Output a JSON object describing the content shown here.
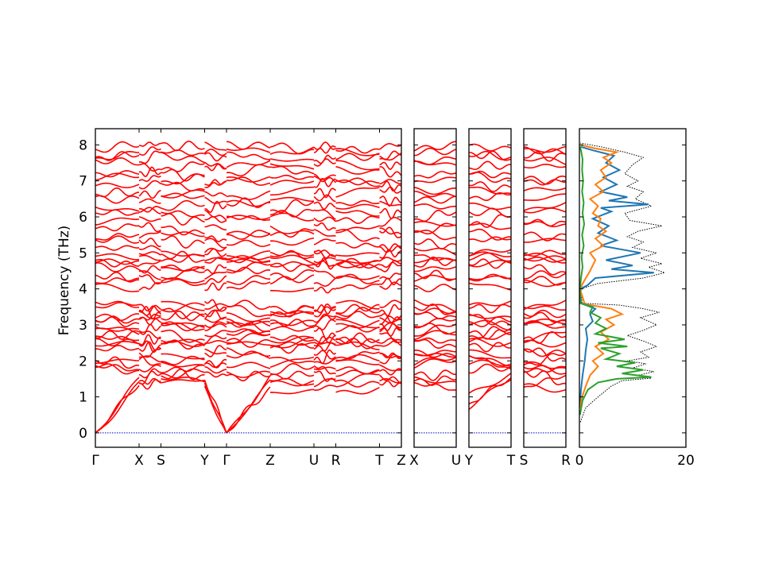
{
  "chart_data": {
    "type": "line",
    "ylabel": "Frequency (THz)",
    "ylim": [
      -0.4,
      8.45
    ],
    "yticks": [
      0,
      1,
      2,
      3,
      4,
      5,
      6,
      7,
      8
    ],
    "panels": [
      {
        "path_labels": [
          "Γ",
          "X",
          "S",
          "Y",
          "Γ",
          "Z",
          "U",
          "R",
          "T",
          "Z"
        ],
        "path_positions": [
          0,
          1,
          1.5,
          2.5,
          3,
          4,
          5,
          5.5,
          6.5,
          7
        ]
      },
      {
        "path_labels": [
          "X",
          "U"
        ],
        "path_positions": [
          0,
          1
        ]
      },
      {
        "path_labels": [
          "Y",
          "T"
        ],
        "path_positions": [
          0,
          1
        ]
      },
      {
        "path_labels": [
          "S",
          "R"
        ],
        "path_positions": [
          0,
          1
        ]
      }
    ],
    "dos_panel": {
      "xlim": [
        0,
        20
      ],
      "xticks": [
        0,
        20
      ],
      "series": [
        {
          "color": "#000000",
          "style": "dotted",
          "points": [
            [
              0.2,
              0.3
            ],
            [
              1.2,
              0.7
            ],
            [
              3.5,
              1.0
            ],
            [
              6.0,
              1.3
            ],
            [
              8.0,
              1.45
            ],
            [
              13.5,
              1.52
            ],
            [
              11.0,
              1.6
            ],
            [
              14.0,
              1.7
            ],
            [
              10.0,
              1.8
            ],
            [
              12.5,
              1.92
            ],
            [
              9.0,
              2.0
            ],
            [
              13.0,
              2.1
            ],
            [
              11.5,
              2.25
            ],
            [
              14.5,
              2.4
            ],
            [
              12.0,
              2.55
            ],
            [
              9.0,
              2.7
            ],
            [
              12.0,
              2.85
            ],
            [
              14.5,
              3.0
            ],
            [
              11.5,
              3.2
            ],
            [
              15.0,
              3.35
            ],
            [
              12.0,
              3.45
            ],
            [
              7.5,
              3.55
            ],
            [
              0.5,
              3.6
            ],
            [
              0.3,
              4.0
            ],
            [
              3.5,
              4.15
            ],
            [
              12.0,
              4.3
            ],
            [
              16.0,
              4.45
            ],
            [
              13.0,
              4.6
            ],
            [
              15.5,
              4.7
            ],
            [
              11.5,
              4.85
            ],
            [
              14.5,
              5.0
            ],
            [
              10.0,
              5.15
            ],
            [
              12.0,
              5.3
            ],
            [
              9.0,
              5.45
            ],
            [
              11.0,
              5.6
            ],
            [
              15.5,
              5.75
            ],
            [
              9.5,
              5.9
            ],
            [
              8.5,
              6.1
            ],
            [
              13.5,
              6.3
            ],
            [
              10.5,
              6.5
            ],
            [
              12.0,
              6.7
            ],
            [
              9.0,
              6.85
            ],
            [
              11.0,
              7.0
            ],
            [
              8.5,
              7.2
            ],
            [
              10.0,
              7.45
            ],
            [
              12.0,
              7.65
            ],
            [
              8.5,
              7.8
            ],
            [
              4.0,
              7.95
            ],
            [
              0.2,
              8.05
            ]
          ]
        },
        {
          "color": "#1f77b4",
          "style": "solid",
          "points": [
            [
              0.1,
              0.8
            ],
            [
              0.3,
              1.2
            ],
            [
              0.6,
              1.6
            ],
            [
              1.0,
              2.0
            ],
            [
              1.2,
              2.3
            ],
            [
              1.5,
              2.6
            ],
            [
              1.2,
              2.9
            ],
            [
              2.5,
              3.1
            ],
            [
              2.0,
              3.3
            ],
            [
              3.0,
              3.45
            ],
            [
              0.3,
              3.6
            ],
            [
              0.1,
              4.0
            ],
            [
              1.5,
              4.1
            ],
            [
              3.0,
              4.3
            ],
            [
              14.0,
              4.45
            ],
            [
              6.0,
              4.55
            ],
            [
              10.0,
              4.65
            ],
            [
              5.0,
              4.8
            ],
            [
              11.5,
              5.0
            ],
            [
              4.0,
              5.2
            ],
            [
              7.0,
              5.35
            ],
            [
              3.5,
              5.55
            ],
            [
              5.5,
              5.75
            ],
            [
              2.5,
              5.95
            ],
            [
              6.0,
              6.15
            ],
            [
              4.0,
              6.25
            ],
            [
              13.0,
              6.35
            ],
            [
              5.5,
              6.45
            ],
            [
              9.0,
              6.55
            ],
            [
              4.0,
              6.7
            ],
            [
              7.0,
              6.9
            ],
            [
              4.5,
              7.1
            ],
            [
              7.5,
              7.3
            ],
            [
              5.0,
              7.5
            ],
            [
              6.5,
              7.7
            ],
            [
              2.5,
              7.85
            ],
            [
              0.2,
              7.95
            ]
          ]
        },
        {
          "color": "#ff7f0e",
          "style": "solid",
          "points": [
            [
              0.1,
              0.7
            ],
            [
              0.5,
              1.0
            ],
            [
              1.2,
              1.3
            ],
            [
              2.0,
              1.6
            ],
            [
              3.5,
              1.85
            ],
            [
              2.5,
              2.0
            ],
            [
              4.5,
              2.2
            ],
            [
              3.0,
              2.4
            ],
            [
              5.5,
              2.6
            ],
            [
              4.0,
              2.8
            ],
            [
              6.5,
              3.0
            ],
            [
              5.0,
              3.15
            ],
            [
              8.0,
              3.3
            ],
            [
              6.0,
              3.45
            ],
            [
              1.0,
              3.58
            ],
            [
              0.1,
              4.0
            ],
            [
              0.8,
              4.2
            ],
            [
              2.0,
              4.5
            ],
            [
              3.0,
              4.8
            ],
            [
              2.0,
              5.0
            ],
            [
              4.5,
              5.2
            ],
            [
              3.0,
              5.4
            ],
            [
              5.0,
              5.6
            ],
            [
              3.5,
              5.75
            ],
            [
              4.0,
              5.95
            ],
            [
              2.5,
              6.1
            ],
            [
              3.5,
              6.3
            ],
            [
              2.0,
              6.5
            ],
            [
              4.5,
              6.7
            ],
            [
              3.0,
              6.9
            ],
            [
              5.0,
              7.1
            ],
            [
              4.0,
              7.3
            ],
            [
              6.0,
              7.5
            ],
            [
              4.5,
              7.65
            ],
            [
              7.0,
              7.8
            ],
            [
              3.0,
              7.9
            ],
            [
              0.2,
              8.0
            ]
          ]
        },
        {
          "color": "#2ca02c",
          "style": "solid",
          "points": [
            [
              0.1,
              0.5
            ],
            [
              0.6,
              0.9
            ],
            [
              1.6,
              1.2
            ],
            [
              3.5,
              1.4
            ],
            [
              7.0,
              1.5
            ],
            [
              13.5,
              1.55
            ],
            [
              8.0,
              1.65
            ],
            [
              12.0,
              1.75
            ],
            [
              7.0,
              1.85
            ],
            [
              10.5,
              1.95
            ],
            [
              5.0,
              2.05
            ],
            [
              7.5,
              2.2
            ],
            [
              4.0,
              2.35
            ],
            [
              9.0,
              2.4
            ],
            [
              3.5,
              2.5
            ],
            [
              8.5,
              2.6
            ],
            [
              3.0,
              2.75
            ],
            [
              5.0,
              2.9
            ],
            [
              3.0,
              3.05
            ],
            [
              4.0,
              3.2
            ],
            [
              2.0,
              3.35
            ],
            [
              2.5,
              3.5
            ],
            [
              0.2,
              3.6
            ],
            [
              0.1,
              4.0
            ],
            [
              0.3,
              4.3
            ],
            [
              0.6,
              4.6
            ],
            [
              0.4,
              4.9
            ],
            [
              0.8,
              5.2
            ],
            [
              0.5,
              5.5
            ],
            [
              0.9,
              5.8
            ],
            [
              0.6,
              6.1
            ],
            [
              0.8,
              6.4
            ],
            [
              0.5,
              6.7
            ],
            [
              0.7,
              7.0
            ],
            [
              0.5,
              7.3
            ],
            [
              0.6,
              7.6
            ],
            [
              0.3,
              7.85
            ],
            [
              0.1,
              7.95
            ]
          ]
        }
      ]
    },
    "series_color": "#ff0000",
    "zero_line_color": "#0000cc"
  }
}
